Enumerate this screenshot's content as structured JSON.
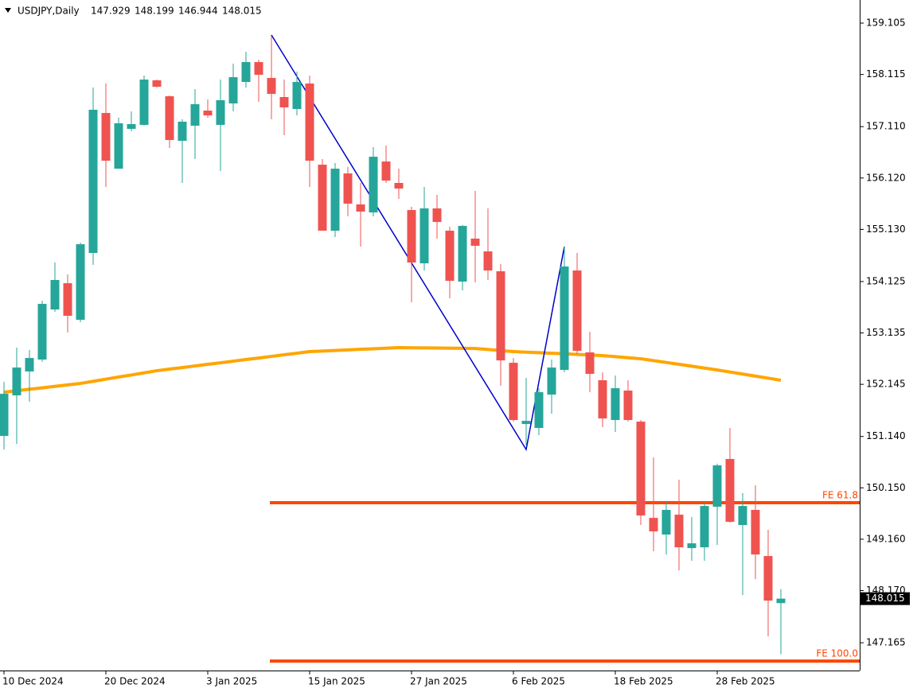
{
  "chart_data": {
    "type": "candlestick",
    "symbol": "USDJPY,Daily",
    "categories": [
      "10 Dec 2024",
      null,
      null,
      null,
      null,
      null,
      null,
      null,
      "20 Dec 2024",
      null,
      null,
      null,
      null,
      null,
      null,
      null,
      "3 Jan 2025",
      null,
      null,
      null,
      null,
      null,
      null,
      null,
      "15 Jan 2025",
      null,
      null,
      null,
      null,
      null,
      null,
      null,
      "27 Jan 2025",
      null,
      null,
      null,
      null,
      null,
      null,
      null,
      "6 Feb 2025",
      null,
      null,
      null,
      null,
      null,
      null,
      null,
      "18 Feb 2025",
      null,
      null,
      null,
      null,
      null,
      null,
      null,
      "28 Feb 2025",
      null,
      null,
      null,
      null,
      null
    ],
    "open": [
      151.15,
      151.932,
      152.392,
      152.622,
      153.587,
      154.093,
      153.388,
      154.676,
      157.373,
      156.3,
      157.067,
      157.144,
      158.002,
      157.695,
      156.837,
      157.128,
      157.419,
      157.144,
      157.557,
      157.971,
      158.354,
      158.048,
      157.68,
      157.45,
      157.941,
      156.377,
      155.105,
      156.208,
      155.611,
      155.457,
      156.438,
      156.025,
      155.503,
      154.476,
      155.534,
      155.105,
      154.124,
      154.952,
      154.706,
      154.323,
      152.56,
      151.38,
      151.304,
      151.947,
      152.422,
      154.338,
      152.76,
      152.223,
      151.457,
      152.024,
      151.426,
      149.571,
      149.25,
      149.633,
      148.989,
      149.004,
      149.786,
      150.706,
      149.434,
      149.725,
      148.836,
      147.929
    ],
    "high": [
      152.192,
      152.852,
      152.806,
      153.756,
      154.492,
      154.262,
      154.875,
      157.864,
      157.941,
      157.281,
      157.404,
      158.094,
      158.017,
      157.711,
      157.251,
      157.833,
      157.634,
      158.017,
      158.324,
      158.554,
      158.4,
      158.86,
      158.017,
      158.17,
      158.094,
      156.484,
      156.408,
      156.331,
      156.025,
      156.714,
      156.745,
      156.3,
      155.565,
      155.948,
      155.795,
      155.182,
      155.212,
      155.871,
      155.534,
      154.461,
      152.652,
      152.269,
      152.07,
      152.622,
      154.798,
      154.676,
      153.158,
      152.376,
      152.315,
      152.223,
      151.457,
      150.736,
      149.893,
      150.307,
      149.587,
      149.863,
      150.614,
      151.304,
      150.047,
      150.2,
      149.342,
      148.199
    ],
    "low": [
      150.889,
      150.997,
      151.809,
      152.576,
      153.541,
      153.143,
      153.342,
      154.446,
      155.948,
      156.3,
      157.021,
      157.128,
      157.864,
      156.699,
      156.025,
      156.484,
      157.281,
      156.254,
      157.404,
      157.864,
      157.588,
      157.251,
      156.944,
      157.327,
      155.948,
      155.105,
      154.982,
      155.381,
      154.798,
      155.381,
      156.025,
      155.718,
      153.725,
      154.338,
      154.952,
      153.802,
      153.955,
      154.109,
      154.155,
      152.116,
      151.426,
      150.966,
      151.166,
      151.579,
      152.376,
      152.729,
      151.993,
      151.319,
      151.227,
      151.426,
      149.434,
      148.928,
      148.866,
      148.56,
      148.744,
      148.744,
      149.05,
      149.48,
      148.085,
      148.391,
      147.288,
      146.944
    ],
    "close": [
      151.962,
      152.468,
      152.652,
      153.695,
      154.155,
      153.465,
      154.844,
      157.435,
      156.454,
      157.174,
      157.159,
      158.017,
      157.879,
      156.852,
      157.205,
      157.542,
      157.327,
      157.619,
      158.063,
      158.354,
      158.109,
      157.741,
      157.481,
      157.971,
      156.454,
      155.105,
      156.3,
      155.626,
      155.473,
      156.53,
      156.071,
      155.917,
      154.492,
      155.534,
      155.273,
      154.139,
      155.197,
      154.814,
      154.338,
      152.606,
      151.457,
      151.441,
      151.993,
      152.468,
      154.415,
      152.79,
      152.346,
      151.487,
      152.07,
      151.457,
      149.617,
      149.311,
      149.725,
      149.004,
      149.081,
      149.801,
      150.583,
      149.495,
      149.801,
      148.866,
      147.977,
      148.015
    ],
    "up_color": "#26a69a",
    "down_color": "#ef5350",
    "moving_average": {
      "color": "#ffa500",
      "values": [
        151.993,
        152.021,
        152.049,
        152.077,
        152.106,
        152.134,
        152.162,
        152.203,
        152.244,
        152.285,
        152.325,
        152.366,
        152.407,
        152.438,
        152.468,
        152.499,
        152.53,
        152.56,
        152.591,
        152.622,
        152.652,
        152.683,
        152.714,
        152.744,
        152.775,
        152.786,
        152.797,
        152.808,
        152.819,
        152.83,
        152.841,
        152.852,
        152.849,
        152.847,
        152.844,
        152.841,
        152.839,
        152.836,
        152.816,
        152.795,
        152.775,
        152.765,
        152.754,
        152.744,
        152.733,
        152.721,
        152.71,
        152.698,
        152.678,
        152.657,
        152.637,
        152.601,
        152.566,
        152.53,
        152.494,
        152.458,
        152.422,
        152.382,
        152.343,
        152.303,
        152.263,
        152.223
      ]
    },
    "zigzag": {
      "color": "#0000cd",
      "x": [
        21,
        41,
        44
      ],
      "values": [
        158.876,
        150.889,
        154.798
      ]
    },
    "levels": [
      {
        "label": "FE 61.8",
        "value": 149.863,
        "x_start": 21,
        "color": "#ff4500"
      },
      {
        "label": "FE 100.0",
        "value": 146.812,
        "x_start": 21,
        "color": "#ff4500"
      }
    ],
    "ylim": [
      146.63,
      159.55
    ],
    "yticks": [
      159.105,
      158.115,
      {
        "value": 157.11,
        "label": "157.110"
      },
      {
        "value": 156.12,
        "label": "156.120"
      },
      {
        "value": 155.13,
        "label": "155.130"
      },
      154.125,
      153.135,
      152.145,
      {
        "value": 151.14,
        "label": "151.140"
      },
      {
        "value": 150.15,
        "label": "150.150"
      },
      {
        "value": 149.16,
        "label": "149.160"
      },
      {
        "value": 148.17,
        "label": "148.170"
      },
      147.165
    ]
  }
}
